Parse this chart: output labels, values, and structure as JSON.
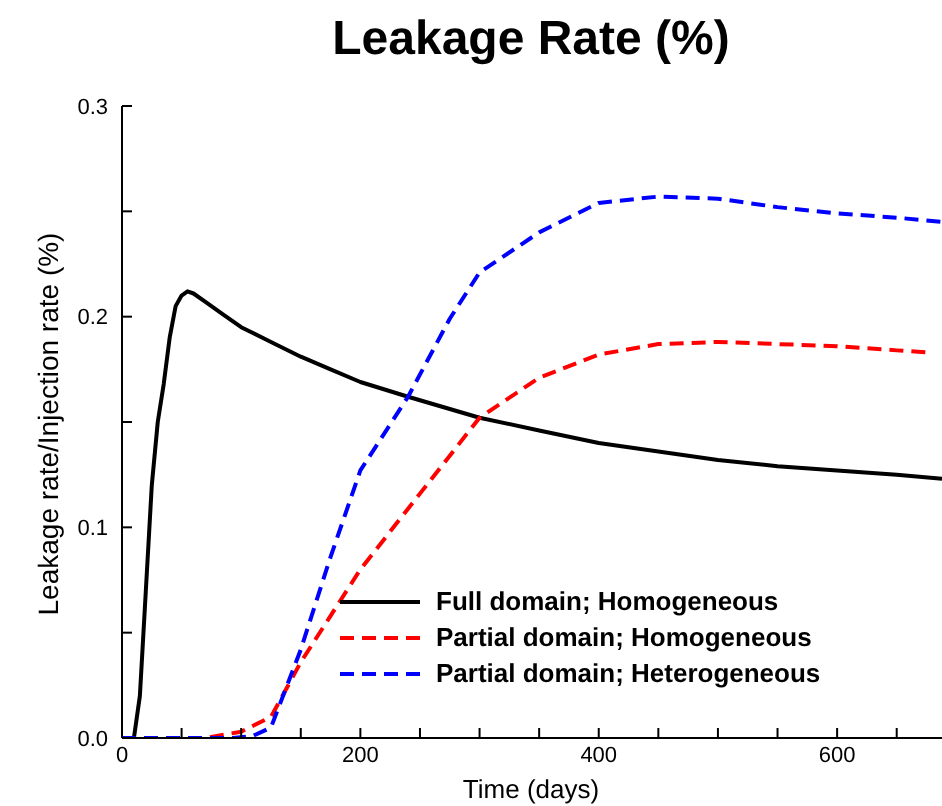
{
  "chart_data": {
    "type": "line",
    "title": "Leakage Rate (%)",
    "xlabel": "Time (days)",
    "ylabel": "Leakage rate/Injection rate (%)",
    "xlim": [
      0,
      688
    ],
    "xticks": [
      0,
      {
        "value": 50,
        "label": null
      },
      {
        "value": 100,
        "label": null
      },
      {
        "value": 150,
        "label": null
      },
      200,
      {
        "value": 250,
        "label": null
      },
      {
        "value": 300,
        "label": null
      },
      {
        "value": 350,
        "label": null
      },
      400,
      {
        "value": 450,
        "label": null
      },
      {
        "value": 500,
        "label": null
      },
      {
        "value": 550,
        "label": null
      },
      600,
      {
        "value": 650,
        "label": null
      }
    ],
    "ylim": [
      0,
      0.3
    ],
    "yticks": [
      {
        "value": 0,
        "label": "0.0"
      },
      {
        "value": 0.05,
        "label": null
      },
      0.1,
      {
        "value": 0.15,
        "label": null
      },
      0.2,
      {
        "value": 0.25,
        "label": null
      },
      0.3
    ],
    "legend": "bottom",
    "marker": "none",
    "series": [
      {
        "name": "Full domain; Homogeneous",
        "color": "#000000",
        "line_style": "solid",
        "x": [
          0,
          10,
          15,
          20,
          25,
          30,
          35,
          40,
          45,
          50,
          55,
          60,
          70,
          85,
          100,
          125,
          150,
          175,
          200,
          240,
          300,
          350,
          400,
          450,
          500,
          550,
          600,
          650,
          688
        ],
        "values": [
          0,
          0,
          0.02,
          0.07,
          0.12,
          0.15,
          0.168,
          0.19,
          0.205,
          0.21,
          0.212,
          0.211,
          0.207,
          0.201,
          0.195,
          0.188,
          0.181,
          0.175,
          0.169,
          0.162,
          0.152,
          0.146,
          0.14,
          0.136,
          0.132,
          0.129,
          0.127,
          0.125,
          0.123
        ]
      },
      {
        "name": "Partial domain; Homogeneous",
        "color": "#ff0000",
        "line_style": "dashed",
        "x": [
          0,
          70,
          100,
          125,
          150,
          175,
          200,
          250,
          300,
          350,
          400,
          450,
          500,
          550,
          600,
          650,
          676
        ],
        "values": [
          0,
          0,
          0.003,
          0.01,
          0.036,
          0.058,
          0.08,
          0.116,
          0.152,
          0.171,
          0.182,
          0.187,
          0.188,
          0.187,
          0.186,
          0.184,
          0.183
        ]
      },
      {
        "name": "Partial domain; Heterogeneous",
        "color": "#0000ff",
        "line_style": "dashed",
        "x": [
          0,
          93,
          110,
          125,
          150,
          175,
          200,
          240,
          275,
          300,
          350,
          400,
          450,
          500,
          550,
          600,
          650,
          688
        ],
        "values": [
          0,
          0,
          0.001,
          0.005,
          0.042,
          0.086,
          0.127,
          0.162,
          0.199,
          0.221,
          0.24,
          0.254,
          0.257,
          0.256,
          0.252,
          0.249,
          0.247,
          0.245
        ]
      }
    ]
  }
}
